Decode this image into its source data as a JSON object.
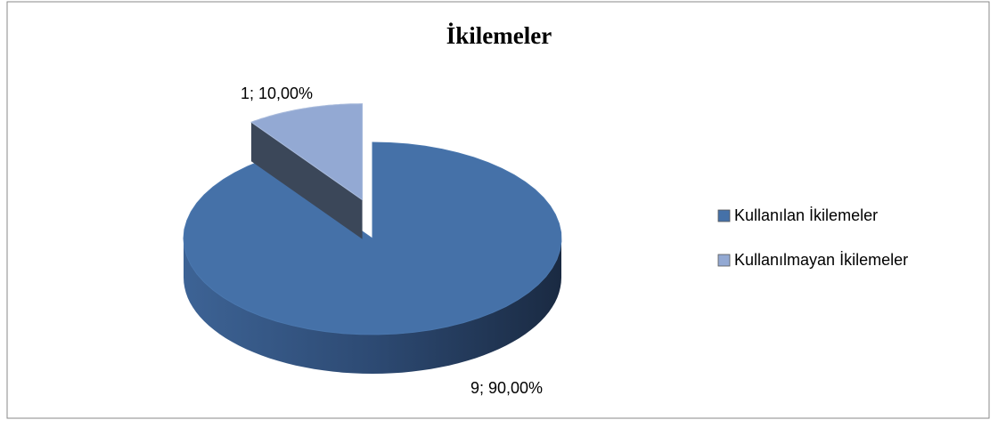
{
  "chart_data": {
    "type": "pie",
    "title": "İkilemeler",
    "categories": [
      "Kullanılan İkilemeler",
      "Kullanılmayan İkilemeler"
    ],
    "values": [
      9,
      1
    ],
    "value_labels": [
      "9; 90,00%",
      "1; 10,00%"
    ],
    "colors": [
      "#4571a8",
      "#93a9d3"
    ],
    "legend": "right"
  }
}
